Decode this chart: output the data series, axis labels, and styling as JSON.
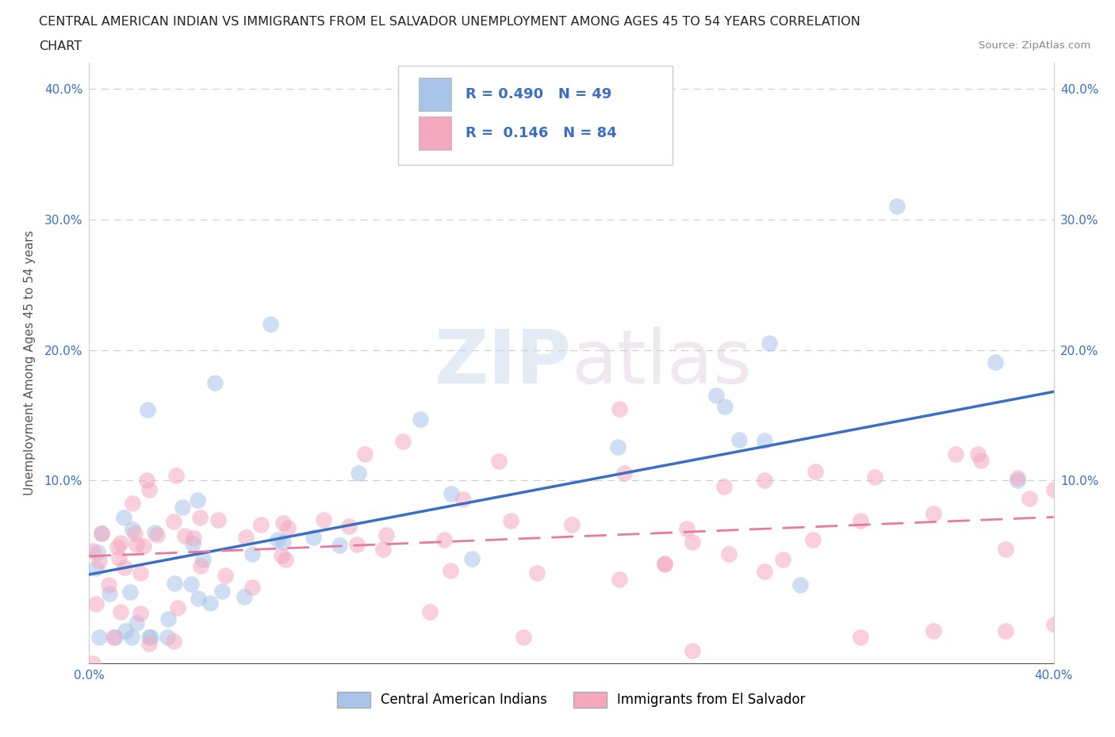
{
  "title_line1": "CENTRAL AMERICAN INDIAN VS IMMIGRANTS FROM EL SALVADOR UNEMPLOYMENT AMONG AGES 45 TO 54 YEARS CORRELATION",
  "title_line2": "CHART",
  "source": "Source: ZipAtlas.com",
  "ylabel": "Unemployment Among Ages 45 to 54 years",
  "xlim": [
    0.0,
    0.4
  ],
  "ylim": [
    0.0,
    0.42
  ],
  "background_color": "#ffffff",
  "R_blue": 0.49,
  "N_blue": 49,
  "R_pink": 0.146,
  "N_pink": 84,
  "blue_color": "#a8c4e8",
  "pink_color": "#f4a8bf",
  "blue_line_color": "#3a6fc4",
  "pink_line_color": "#e87a9f",
  "legend_label_blue": "Central American Indians",
  "legend_label_pink": "Immigrants from El Salvador",
  "blue_line_x0": 0.0,
  "blue_line_y0": 0.028,
  "blue_line_x1": 0.4,
  "blue_line_y1": 0.168,
  "pink_line_x0": 0.0,
  "pink_line_y0": 0.042,
  "pink_line_x1": 0.4,
  "pink_line_y1": 0.072,
  "grid_color": "#cccccc",
  "tick_label_color": "#3a6fc4",
  "axis_label_color": "#555555"
}
